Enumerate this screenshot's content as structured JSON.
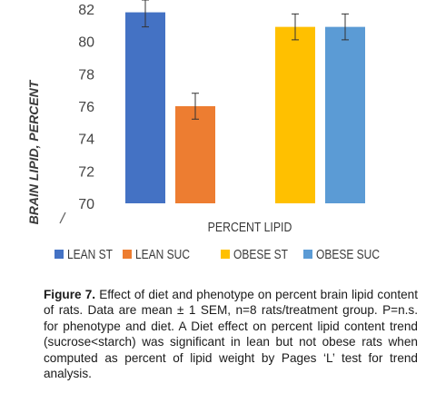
{
  "chart_data": {
    "type": "bar",
    "categories": [
      "LEAN ST",
      "LEAN SUC",
      "OBESE ST",
      "OBESE SUC"
    ],
    "values": [
      81.8,
      76.0,
      80.9,
      80.9
    ],
    "error": [
      0.9,
      0.8,
      0.8,
      0.8
    ],
    "colors": [
      "#4472c4",
      "#ed7d31",
      "#ffc000",
      "#5b9bd5"
    ],
    "xlabel": "PERCENT LIPID",
    "ylabel": "BRAIN LIPID, PERCENT",
    "ylim": [
      70,
      82
    ],
    "yticks": [
      70,
      72,
      74,
      76,
      78,
      80,
      82
    ],
    "grid": false,
    "legend_position": "bottom"
  },
  "caption": {
    "label": "Figure 7.",
    "text": "Effect of diet and phenotype on percent brain lipid content of rats. Data are mean ± 1 SEM, n=8 rats/treatment group. P=n.s. for phenotype and diet. A Diet effect on percent lipid content trend (sucrose<starch) was significant in lean but not obese rats when computed as percent of lipid weight by Pages ‘L’ test for trend analysis."
  }
}
